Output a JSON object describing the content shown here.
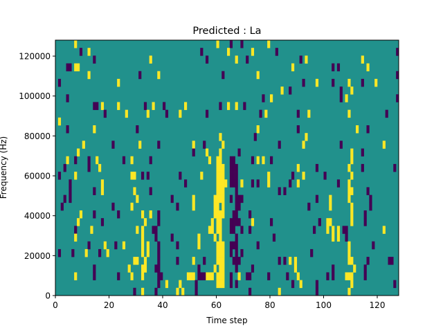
{
  "chart_data": {
    "type": "heatmap",
    "title": "Predicted : La",
    "xlabel": "Time step",
    "ylabel": "Frequency (Hz)",
    "xlim": [
      0,
      128
    ],
    "ylim": [
      0,
      128000
    ],
    "x_ticks": [
      0,
      20,
      40,
      60,
      80,
      100,
      120
    ],
    "y_ticks": [
      0,
      20000,
      40000,
      60000,
      80000,
      100000,
      120000
    ],
    "y_tick_labels": [
      "0",
      "20000",
      "40000",
      "60000",
      "80000",
      "100000",
      "120000"
    ],
    "n_cols": 128,
    "n_rows": 33,
    "colormap": "viridis",
    "colors": {
      "background": "#21918c",
      "high": "#fde725",
      "low": "#440154"
    },
    "grid": false,
    "rows_top_to_bottom": [
      {
        "y": [
          7,
          60,
          79
        ],
        "p": [
          65,
          69
        ]
      },
      {
        "y": [
          12,
          64,
          73
        ],
        "p": [
          9,
          54,
          82,
          127
        ]
      },
      {
        "y": [
          35,
          67,
          93,
          114
        ],
        "p": [
          14,
          56,
          71,
          91
        ]
      },
      {
        "y": [
          7,
          8,
          88,
          116
        ],
        "p": [
          4,
          5,
          103,
          105
        ]
      },
      {
        "y": [
          12,
          38,
          75
        ],
        "p": [
          31,
          62,
          127
        ]
      },
      {
        "y": [
          23,
          97,
          109,
          119
        ],
        "p": [
          1,
          92,
          103,
          114
        ]
      },
      {
        "y": [
          84,
          110
        ],
        "p": [
          87,
          106
        ]
      },
      {
        "y": [
          80,
          108
        ],
        "p": [
          4,
          77,
          106,
          127
        ]
      },
      {
        "y": [
          17,
          23,
          36,
          48,
          64,
          67
        ],
        "p": [
          14,
          15,
          33,
          40,
          61,
          70
        ]
      },
      {
        "y": [
          26,
          34,
          46,
          78,
          94,
          109
        ],
        "p": [
          18,
          41,
          56,
          76,
          90,
          123
        ]
      },
      {
        "y": [
          1
        ],
        "p": []
      },
      {
        "y": [
          14,
          75,
          112
        ],
        "p": [
          4,
          30,
          90,
          116
        ]
      },
      {
        "y": [
          61,
          93
        ],
        "p": [
          74
        ]
      },
      {
        "y": [
          10,
          31,
          51,
          62,
          92,
          122
        ],
        "p": [
          21,
          38,
          55,
          83,
          106
        ]
      },
      {
        "y": [
          8,
          56,
          61,
          110
        ],
        "p": [
          51,
          68,
          114
        ]
      },
      {
        "y": [
          4,
          15,
          28,
          57,
          60,
          61,
          75,
          77,
          110
        ],
        "p": [
          7,
          12,
          25,
          35,
          65,
          66,
          73,
          80
        ]
      },
      {
        "y": [
          16,
          60,
          61,
          62,
          90,
          109
        ],
        "p": [
          3,
          12,
          65,
          66,
          67,
          97,
          114,
          126
        ]
      },
      {
        "y": [
          7,
          28,
          29,
          54,
          60,
          61,
          62,
          79,
          92,
          110
        ],
        "p": [
          1,
          32,
          34,
          46,
          65,
          66,
          67,
          88,
          100
        ]
      },
      {
        "y": [
          17,
          60,
          61,
          62,
          63,
          69,
          79,
          90,
          109
        ],
        "p": [
          5,
          48,
          65,
          66,
          67,
          73,
          75,
          87,
          105
        ]
      },
      {
        "y": [
          17,
          29,
          60,
          61,
          62,
          109,
          110
        ],
        "p": [
          5,
          14,
          35,
          67,
          83,
          85,
          116
        ]
      },
      {
        "y": [
          30,
          51,
          59,
          60,
          61,
          62,
          102,
          109
        ],
        "p": [
          3,
          5,
          43,
          65,
          67,
          68,
          69,
          97,
          117
        ]
      },
      {
        "y": [
          28,
          51,
          59,
          60,
          62,
          102,
          110
        ],
        "p": [
          2,
          21,
          45,
          67,
          68,
          94,
          117
        ]
      },
      {
        "y": [
          9,
          32,
          35,
          59,
          60,
          61,
          62,
          110
        ],
        "p": [
          14,
          23,
          38,
          66,
          67,
          72,
          115
        ]
      },
      {
        "y": [
          8,
          33,
          58,
          60,
          61,
          73,
          101,
          102,
          110
        ],
        "p": [
          17,
          38,
          65,
          66,
          67,
          68,
          80,
          98,
          115
        ]
      },
      {
        "y": [
          13,
          30,
          32,
          57,
          58,
          60,
          61,
          101,
          103,
          105,
          122
        ],
        "p": [
          7,
          36,
          37,
          65,
          66,
          69,
          72,
          96,
          107,
          108
        ]
      },
      {
        "y": [
          7,
          32,
          53,
          59,
          61,
          103,
          105
        ],
        "p": [
          37,
          43,
          67,
          81,
          108
        ]
      },
      {
        "y": [
          18,
          25,
          32,
          34,
          53,
          60,
          61,
          62,
          109
        ],
        "p": [
          12,
          22,
          38,
          45,
          65,
          66,
          67,
          75,
          118
        ]
      },
      {
        "y": [
          11,
          19,
          32,
          34,
          60,
          61,
          62,
          109
        ],
        "p": [
          1,
          6,
          16,
          38,
          65,
          67,
          69,
          95
        ]
      },
      {
        "y": [
          29,
          30,
          33,
          51,
          60,
          61,
          62,
          87,
          89,
          109,
          110
        ],
        "p": [
          38,
          45,
          55,
          66,
          67,
          68,
          83,
          85,
          116,
          124,
          125
        ]
      },
      {
        "y": [
          27,
          32,
          33,
          59,
          61,
          62,
          89,
          111
        ],
        "p": [
          14,
          37,
          38,
          53,
          67,
          73,
          103,
          115
        ]
      },
      {
        "y": [
          7,
          28,
          32,
          49,
          50,
          51,
          56,
          57,
          58,
          60,
          61,
          62,
          68,
          90,
          108,
          109,
          110
        ],
        "p": [
          14,
          23,
          38,
          39,
          53,
          54,
          55,
          65,
          71,
          72,
          79,
          86,
          101,
          103,
          115
        ]
      },
      {
        "y": [
          41,
          46,
          60,
          61,
          62,
          91,
          110
        ],
        "p": [
          38,
          52,
          65,
          67,
          88,
          97,
          126
        ]
      },
      {
        "y": [
          32,
          45,
          47,
          83,
          109
        ],
        "p": [
          29,
          37,
          52,
          72,
          97
        ]
      }
    ]
  }
}
